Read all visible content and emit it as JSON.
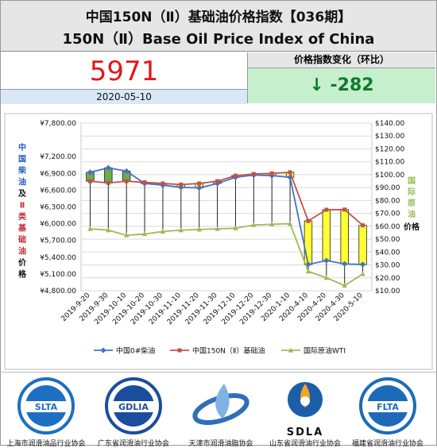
{
  "header": {
    "title_cn": "中国150N（Ⅱ）基础油价格指数【036期】",
    "title_en": "150N（Ⅱ）Base Oil Price Index of China"
  },
  "index": {
    "value": "5971",
    "date": "2020-05-10"
  },
  "change": {
    "label": "价格指数变化（环比）",
    "arrow": "↓",
    "value": "-282"
  },
  "chart_data": {
    "type": "line",
    "categories": [
      "2019-9-20",
      "2019-9-30",
      "2019-10-10",
      "2019-10-20",
      "2019-10-30",
      "2019-11-10",
      "2019-11-20",
      "2019-11-30",
      "2019-12-10",
      "2019-12-20",
      "2019-12-30",
      "2020-1-10",
      "2020-4-10",
      "2020-4-20",
      "2020-4-30",
      "2020-5-10"
    ],
    "left_axis": {
      "label_chars": [
        "中",
        "国",
        "柴",
        "油",
        "及",
        "Ⅱ",
        "类",
        "基",
        "础",
        "油",
        "价",
        "格"
      ],
      "label_colors": [
        "#1f5fbf",
        "#1f5fbf",
        "#1f5fbf",
        "#1f5fbf",
        "#111111",
        "#c0282f",
        "#c0282f",
        "#c0282f",
        "#c0282f",
        "#c0282f",
        "#111111",
        "#111111"
      ],
      "ticks": [
        "¥7,800.00",
        "¥7,200.00",
        "¥6,900.00",
        "¥6,600.00",
        "¥6,300.00",
        "¥6,000.00",
        "¥5,700.00",
        "¥5,400.00",
        "¥5,100.00",
        "¥4,800.00"
      ],
      "range": [
        4800,
        7800
      ]
    },
    "right_axis": {
      "label_chars": [
        "国",
        "际",
        "原",
        "油"
      ],
      "label_chars2": [
        "价",
        "格"
      ],
      "ticks": [
        "$140.00",
        "$130.00",
        "$120.00",
        "$110.00",
        "$100.00",
        "$90.00",
        "$80.00",
        "$70.00",
        "$60.00",
        "$50.00",
        "$40.00",
        "$30.00",
        "$20.00",
        "$10.00"
      ],
      "range": [
        10,
        140
      ]
    },
    "series": [
      {
        "name": "中国0#柴油",
        "color": "#4472c4",
        "axis": "left",
        "values": [
          6920,
          7000,
          6940,
          6720,
          6690,
          6650,
          6640,
          6720,
          6830,
          6870,
          6860,
          6830,
          5270,
          5340,
          5280,
          5270
        ]
      },
      {
        "name": "中国150N（Ⅱ）基础油",
        "color": "#c0504d",
        "axis": "left",
        "values": [
          6760,
          6730,
          6760,
          6740,
          6720,
          6700,
          6720,
          6760,
          6860,
          6890,
          6900,
          6920,
          6050,
          6250,
          6253,
          5971
        ]
      },
      {
        "name": "国际原油WTI",
        "color": "#9bbb59",
        "axis": "right",
        "values": [
          58,
          57,
          53,
          54,
          56,
          57,
          57.5,
          58,
          58.5,
          61,
          61.5,
          62,
          25,
          20,
          14,
          23
        ]
      }
    ],
    "candles": [
      {
        "open": 6920,
        "close": 6760,
        "high": 6940,
        "low": 6740
      },
      {
        "open": 7000,
        "close": 6730,
        "high": 7010,
        "low": 6720
      },
      {
        "open": 6940,
        "close": 6760,
        "high": 6960,
        "low": 6750
      },
      {
        "open": 6720,
        "close": 6740,
        "high": 6750,
        "low": 6710
      },
      {
        "open": 6690,
        "close": 6720,
        "high": 6730,
        "low": 6680
      },
      {
        "open": 6650,
        "close": 6700,
        "high": 6710,
        "low": 6640
      },
      {
        "open": 6640,
        "close": 6720,
        "high": 6730,
        "low": 6630
      },
      {
        "open": 6720,
        "close": 6760,
        "high": 6770,
        "low": 6710
      },
      {
        "open": 6830,
        "close": 6860,
        "high": 6870,
        "low": 6820
      },
      {
        "open": 6870,
        "close": 6890,
        "high": 6900,
        "low": 6860
      },
      {
        "open": 6860,
        "close": 6900,
        "high": 6920,
        "low": 6850
      },
      {
        "open": 6830,
        "close": 6920,
        "high": 6940,
        "low": 6820
      },
      {
        "open": 5270,
        "close": 6050,
        "high": 6060,
        "low": 5260
      },
      {
        "open": 5340,
        "close": 6250,
        "high": 6270,
        "low": 5330
      },
      {
        "open": 5280,
        "close": 6253,
        "high": 6270,
        "low": 5270
      },
      {
        "open": 5270,
        "close": 5971,
        "high": 5990,
        "low": 5260
      }
    ],
    "up_color": "#ffff33",
    "down_color": "#6cad4a",
    "grid": true,
    "legend": "bottom"
  },
  "logos": [
    {
      "acronym": "SLTA",
      "caption": "上海市润滑油品行业协会",
      "color": "#1e6fc1"
    },
    {
      "acronym": "GDLIA",
      "caption": "广东省润滑油行业协会",
      "color": "#1a4e9c"
    },
    {
      "acronym": "",
      "caption": "天津市润滑油脂协会",
      "color": "#2f6fb6"
    },
    {
      "acronym": "SDLA",
      "caption": "山东省润滑油行业协会",
      "color": "#1c5ea8"
    },
    {
      "acronym": "FLTA",
      "caption": "福建省润滑油行业协会",
      "color": "#1d6bb8"
    }
  ]
}
